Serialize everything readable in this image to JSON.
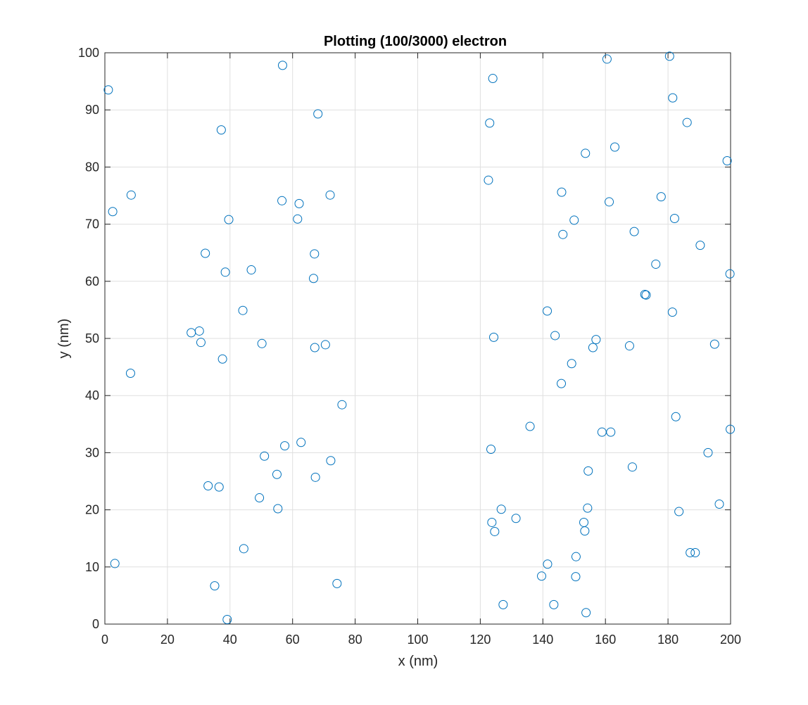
{
  "chart_data": {
    "type": "scatter",
    "title": "Plotting (100/3000) electron",
    "xlabel": "x (nm)",
    "ylabel": "y (nm)",
    "xlim": [
      0,
      200
    ],
    "ylim": [
      0,
      100
    ],
    "xticks": [
      0,
      20,
      40,
      60,
      80,
      100,
      120,
      140,
      160,
      180,
      200
    ],
    "yticks": [
      0,
      10,
      20,
      30,
      40,
      50,
      60,
      70,
      80,
      90,
      100
    ],
    "grid": true,
    "marker": "circle-open",
    "color": "#0072BD",
    "series": [
      {
        "x": [
          1.1,
          2.5,
          3.2,
          8.2,
          8.4,
          27.6,
          30.2,
          30.7,
          32.1,
          33.0,
          35.1,
          36.5,
          37.2,
          37.6,
          38.5,
          39.1,
          39.6,
          44.1,
          44.4,
          46.8,
          49.4,
          50.2,
          51.0,
          55.0,
          55.3,
          56.6,
          56.8,
          57.5,
          61.6,
          62.1,
          62.7,
          66.7,
          67.0,
          67.1,
          67.3,
          68.1,
          70.5,
          72.0,
          72.2,
          74.2,
          75.8,
          122.6,
          123.0,
          123.4,
          123.7,
          124.0,
          124.3,
          124.6,
          126.7,
          127.3,
          131.4,
          135.9,
          139.6,
          141.4,
          141.5,
          143.5,
          143.9,
          145.9,
          146.0,
          146.4,
          149.2,
          150.0,
          150.5,
          150.6,
          153.1,
          153.4,
          153.6,
          153.8,
          154.3,
          154.5,
          156.0,
          157.0,
          158.9,
          160.5,
          161.2,
          161.7,
          163.0,
          167.7,
          168.6,
          169.2,
          176.1,
          177.8,
          172.6,
          173.0,
          180.5,
          181.4,
          181.5,
          182.1,
          182.5,
          183.5,
          186.1,
          187.1,
          188.7,
          190.3,
          192.8,
          194.9,
          196.4,
          198.9,
          199.8,
          199.9
        ],
        "y": [
          93.5,
          72.2,
          10.6,
          43.9,
          75.1,
          51.0,
          51.3,
          49.3,
          64.9,
          24.2,
          6.7,
          24.0,
          86.5,
          46.4,
          61.6,
          0.8,
          70.8,
          54.9,
          13.2,
          62.0,
          22.1,
          49.1,
          29.4,
          26.2,
          20.2,
          74.1,
          97.8,
          31.2,
          70.9,
          73.6,
          31.8,
          60.5,
          64.8,
          48.4,
          25.7,
          89.3,
          48.9,
          75.1,
          28.6,
          7.1,
          38.4,
          77.7,
          87.7,
          30.6,
          17.8,
          95.5,
          50.2,
          16.2,
          20.1,
          3.4,
          18.5,
          34.6,
          8.4,
          54.8,
          10.5,
          3.4,
          50.5,
          42.1,
          75.6,
          68.2,
          45.6,
          70.7,
          8.3,
          11.8,
          17.8,
          16.3,
          82.4,
          2.0,
          20.3,
          26.8,
          48.4,
          49.8,
          33.6,
          98.9,
          73.9,
          33.6,
          83.5,
          48.7,
          27.5,
          68.7,
          63.0,
          74.8,
          57.7,
          57.6,
          99.4,
          54.6,
          92.1,
          71.0,
          36.3,
          19.7,
          87.8,
          12.5,
          12.5,
          66.3,
          30.0,
          49.0,
          21.0,
          81.1,
          61.3,
          34.1
        ]
      }
    ]
  }
}
